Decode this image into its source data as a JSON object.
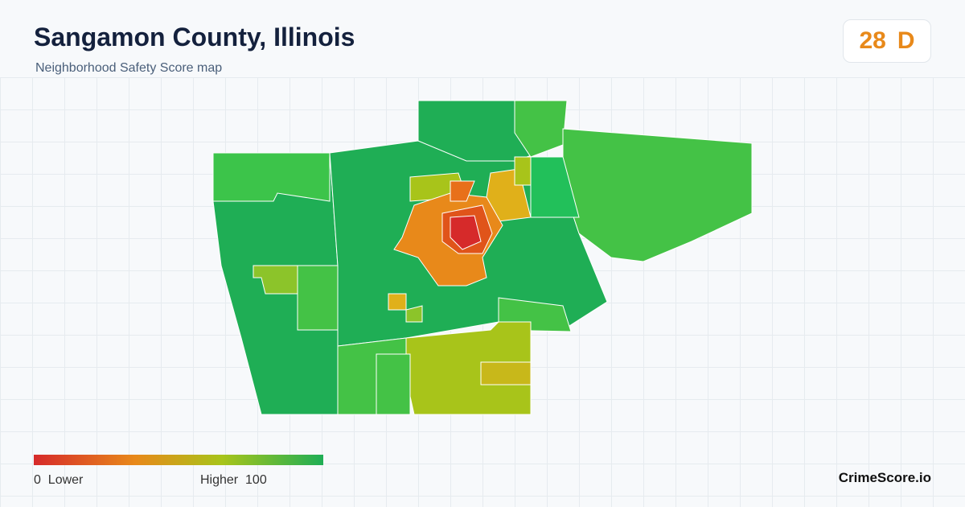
{
  "header": {
    "title": "Sangamon County, Illinois",
    "subtitle": "Neighborhood Safety Score map"
  },
  "score": {
    "value": 28,
    "grade": "D"
  },
  "legend": {
    "min": 0,
    "min_label": "Lower",
    "max_label": "Higher",
    "max": 100
  },
  "footer": {
    "brand": "CrimeScore.io"
  }
}
